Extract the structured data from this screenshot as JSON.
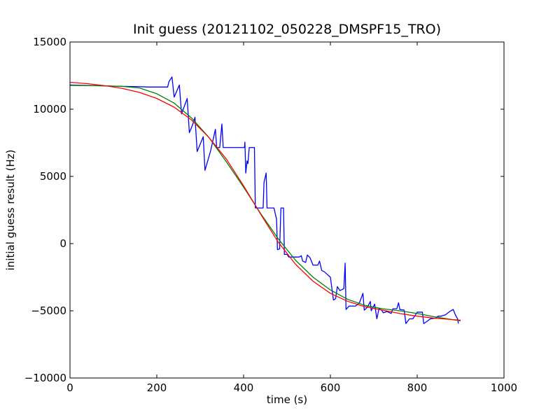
{
  "chart_data": {
    "type": "line",
    "title": "Init guess (20121102_050228_DMSPF15_TRO)",
    "xlabel": "time (s)",
    "ylabel": "initial guess result (Hz)",
    "xlim": [
      0,
      1000
    ],
    "ylim": [
      -10000,
      15000
    ],
    "xticks": [
      0,
      200,
      400,
      600,
      800,
      1000
    ],
    "yticks": [
      -10000,
      -5000,
      0,
      5000,
      10000,
      15000
    ],
    "xtick_labels": [
      "0",
      "200",
      "400",
      "600",
      "800",
      "1000"
    ],
    "ytick_labels": [
      "−10000",
      "−5000",
      "0",
      "5000",
      "10000",
      "15000"
    ],
    "grid": false,
    "legend": "none",
    "series": [
      {
        "color": "#0000ff",
        "points": [
          [
            0,
            11800
          ],
          [
            40,
            11770
          ],
          [
            80,
            11730
          ],
          [
            120,
            11700
          ],
          [
            160,
            11680
          ],
          [
            180,
            11650
          ],
          [
            200,
            11650
          ],
          [
            215,
            11650
          ],
          [
            225,
            11650
          ],
          [
            228,
            12050
          ],
          [
            235,
            12400
          ],
          [
            240,
            10900
          ],
          [
            252,
            11800
          ],
          [
            257,
            9650
          ],
          [
            270,
            10800
          ],
          [
            275,
            8250
          ],
          [
            282,
            8800
          ],
          [
            288,
            9400
          ],
          [
            293,
            6850
          ],
          [
            307,
            7950
          ],
          [
            311,
            5450
          ],
          [
            324,
            6900
          ],
          [
            335,
            8500
          ],
          [
            338,
            7150
          ],
          [
            345,
            7150
          ],
          [
            350,
            8900
          ],
          [
            353,
            7150
          ],
          [
            380,
            7150
          ],
          [
            402,
            7150
          ],
          [
            403,
            7550
          ],
          [
            405,
            5250
          ],
          [
            408,
            6150
          ],
          [
            410,
            5950
          ],
          [
            413,
            7150
          ],
          [
            425,
            7150
          ],
          [
            427,
            2650
          ],
          [
            445,
            2650
          ],
          [
            447,
            4550
          ],
          [
            452,
            5250
          ],
          [
            454,
            2650
          ],
          [
            470,
            2650
          ],
          [
            476,
            1800
          ],
          [
            478,
            -450
          ],
          [
            483,
            -400
          ],
          [
            486,
            2650
          ],
          [
            492,
            2650
          ],
          [
            494,
            -800
          ],
          [
            500,
            -800
          ],
          [
            504,
            -1000
          ],
          [
            528,
            -1000
          ],
          [
            533,
            -900
          ],
          [
            536,
            -1300
          ],
          [
            543,
            -1400
          ],
          [
            547,
            -850
          ],
          [
            553,
            -1050
          ],
          [
            560,
            -1600
          ],
          [
            571,
            -1600
          ],
          [
            575,
            -1300
          ],
          [
            580,
            -2000
          ],
          [
            586,
            -2100
          ],
          [
            600,
            -2500
          ],
          [
            607,
            -4200
          ],
          [
            612,
            -4100
          ],
          [
            616,
            -3200
          ],
          [
            622,
            -3500
          ],
          [
            631,
            -3350
          ],
          [
            634,
            -1450
          ],
          [
            636,
            -4900
          ],
          [
            643,
            -4650
          ],
          [
            658,
            -4650
          ],
          [
            667,
            -4400
          ],
          [
            675,
            -3700
          ],
          [
            678,
            -4950
          ],
          [
            685,
            -4750
          ],
          [
            692,
            -4300
          ],
          [
            694,
            -5000
          ],
          [
            702,
            -4500
          ],
          [
            707,
            -5600
          ],
          [
            712,
            -4850
          ],
          [
            718,
            -4950
          ],
          [
            722,
            -5150
          ],
          [
            730,
            -5050
          ],
          [
            740,
            -5200
          ],
          [
            744,
            -4850
          ],
          [
            753,
            -4850
          ],
          [
            757,
            -4400
          ],
          [
            760,
            -4900
          ],
          [
            770,
            -4950
          ],
          [
            774,
            -5950
          ],
          [
            782,
            -5600
          ],
          [
            790,
            -5600
          ],
          [
            795,
            -5350
          ],
          [
            800,
            -5100
          ],
          [
            812,
            -5100
          ],
          [
            815,
            -5950
          ],
          [
            822,
            -5800
          ],
          [
            830,
            -5600
          ],
          [
            842,
            -5550
          ],
          [
            848,
            -5400
          ],
          [
            855,
            -5400
          ],
          [
            865,
            -5300
          ],
          [
            875,
            -5050
          ],
          [
            883,
            -4900
          ],
          [
            888,
            -5300
          ],
          [
            893,
            -5600
          ],
          [
            895,
            -5950
          ]
        ]
      },
      {
        "color": "#008000",
        "points": [
          [
            0,
            11770
          ],
          [
            40,
            11760
          ],
          [
            80,
            11740
          ],
          [
            120,
            11700
          ],
          [
            160,
            11580
          ],
          [
            200,
            11150
          ],
          [
            240,
            10450
          ],
          [
            280,
            9350
          ],
          [
            320,
            7900
          ],
          [
            360,
            6100
          ],
          [
            400,
            4200
          ],
          [
            440,
            2200
          ],
          [
            480,
            350
          ],
          [
            520,
            -1250
          ],
          [
            560,
            -2500
          ],
          [
            600,
            -3450
          ],
          [
            640,
            -4150
          ],
          [
            680,
            -4600
          ],
          [
            720,
            -4850
          ],
          [
            760,
            -5000
          ],
          [
            800,
            -5200
          ],
          [
            840,
            -5450
          ],
          [
            880,
            -5650
          ],
          [
            900,
            -5750
          ]
        ]
      },
      {
        "color": "#ff0000",
        "points": [
          [
            0,
            12000
          ],
          [
            40,
            11900
          ],
          [
            80,
            11750
          ],
          [
            120,
            11550
          ],
          [
            160,
            11250
          ],
          [
            200,
            10800
          ],
          [
            240,
            10150
          ],
          [
            280,
            9200
          ],
          [
            320,
            7900
          ],
          [
            360,
            6300
          ],
          [
            400,
            4300
          ],
          [
            440,
            2150
          ],
          [
            480,
            100
          ],
          [
            520,
            -1550
          ],
          [
            560,
            -2800
          ],
          [
            600,
            -3700
          ],
          [
            640,
            -4300
          ],
          [
            680,
            -4700
          ],
          [
            720,
            -4950
          ],
          [
            760,
            -5200
          ],
          [
            800,
            -5400
          ],
          [
            840,
            -5550
          ],
          [
            880,
            -5650
          ],
          [
            900,
            -5700
          ]
        ]
      }
    ]
  }
}
